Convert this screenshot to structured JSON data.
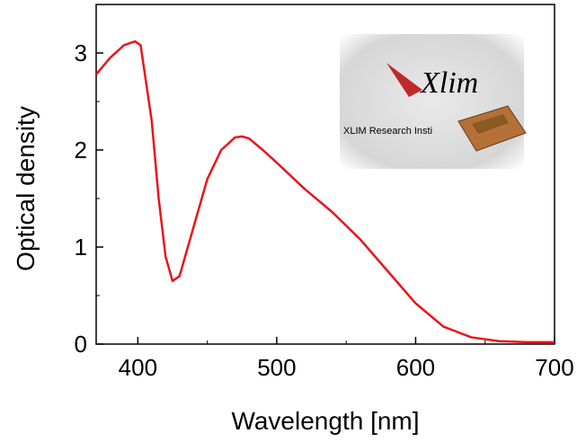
{
  "chart_data": {
    "type": "line",
    "x_label": "Wavelength [nm]",
    "y_label": "Optical density",
    "x": [
      370,
      380,
      390,
      398,
      402,
      410,
      415,
      420,
      425,
      430,
      440,
      450,
      460,
      470,
      475,
      480,
      490,
      500,
      520,
      540,
      560,
      580,
      600,
      620,
      640,
      660,
      680,
      700
    ],
    "values": [
      2.78,
      2.95,
      3.08,
      3.12,
      3.08,
      2.3,
      1.5,
      0.9,
      0.65,
      0.7,
      1.2,
      1.7,
      2.0,
      2.13,
      2.14,
      2.12,
      2.0,
      1.87,
      1.6,
      1.36,
      1.08,
      0.75,
      0.42,
      0.18,
      0.07,
      0.03,
      0.02,
      0.02
    ],
    "color": "#e8151b",
    "xlim": [
      370,
      700
    ],
    "ylim": [
      0,
      3.5
    ],
    "xticks": [
      400,
      500,
      600,
      700
    ],
    "yticks": [
      0,
      1,
      2,
      3
    ],
    "x_minor_ticks": [
      450,
      550,
      650
    ],
    "y_minor_ticks": [
      0.5,
      1.5,
      2.5
    ],
    "inset": {
      "logo": "Xlim",
      "caption": "XLIM Research Insti"
    }
  }
}
